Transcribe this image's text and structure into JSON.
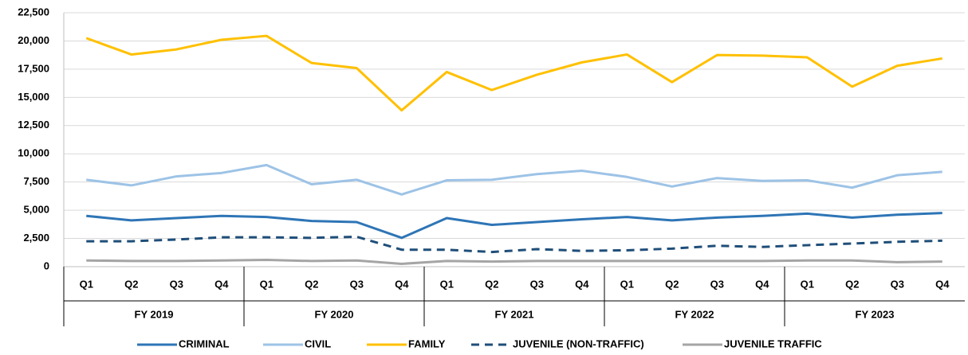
{
  "chart_data": {
    "type": "line",
    "categories": [
      "Q1",
      "Q2",
      "Q3",
      "Q4",
      "Q1",
      "Q2",
      "Q3",
      "Q4",
      "Q1",
      "Q2",
      "Q3",
      "Q4",
      "Q1",
      "Q2",
      "Q3",
      "Q4",
      "Q1",
      "Q2",
      "Q3",
      "Q4"
    ],
    "group_labels": [
      "FY 2019",
      "FY 2020",
      "FY 2021",
      "FY 2022",
      "FY 2023"
    ],
    "ylim": [
      0,
      22500
    ],
    "yticks": [
      0,
      {
        "value": 2500,
        "label": "2,500"
      },
      {
        "value": 5000,
        "label": "5,000"
      },
      {
        "value": 7500,
        "label": "7,500"
      },
      {
        "value": 10000,
        "label": "10,000"
      },
      {
        "value": 12500,
        "label": "12,500"
      },
      {
        "value": 15000,
        "label": "15,000"
      },
      {
        "value": 17500,
        "label": "17,500"
      },
      {
        "value": 20000,
        "label": "20,000"
      },
      {
        "value": 22500,
        "label": "22,500"
      }
    ],
    "grid": true,
    "legend": "bottom",
    "series": [
      {
        "name": "CRIMINAL",
        "color": "#2e75b6",
        "dashed": false,
        "values": [
          4500,
          4100,
          4300,
          4500,
          4400,
          4050,
          3950,
          2550,
          4300,
          3700,
          3950,
          4200,
          4400,
          4100,
          4350,
          4500,
          4700,
          4350,
          4600,
          4750
        ]
      },
      {
        "name": "CIVIL",
        "color": "#9dc3e6",
        "dashed": false,
        "values": [
          7700,
          7200,
          8000,
          8300,
          9000,
          7300,
          7700,
          6400,
          7650,
          7700,
          8200,
          8500,
          7950,
          7100,
          7850,
          7600,
          7650,
          7000,
          8100,
          8400
        ]
      },
      {
        "name": "FAMILY",
        "color": "#ffc000",
        "dashed": false,
        "values": [
          20250,
          18800,
          19250,
          20100,
          20450,
          18050,
          17600,
          13850,
          17250,
          15650,
          17000,
          18100,
          18800,
          16350,
          18750,
          18700,
          18550,
          15950,
          17800,
          18450
        ]
      },
      {
        "name": "JUVENILE (NON-TRAFFIC)",
        "color": "#1f4e79",
        "dashed": true,
        "values": [
          2250,
          2250,
          2400,
          2600,
          2600,
          2550,
          2650,
          1500,
          1500,
          1300,
          1550,
          1400,
          1450,
          1600,
          1850,
          1750,
          1900,
          2050,
          2200,
          2300
        ]
      },
      {
        "name": "JUVENILE TRAFFIC",
        "color": "#a5a5a5",
        "dashed": false,
        "values": [
          550,
          500,
          500,
          550,
          600,
          500,
          550,
          250,
          500,
          450,
          500,
          500,
          500,
          500,
          500,
          500,
          550,
          550,
          400,
          450
        ]
      }
    ]
  }
}
